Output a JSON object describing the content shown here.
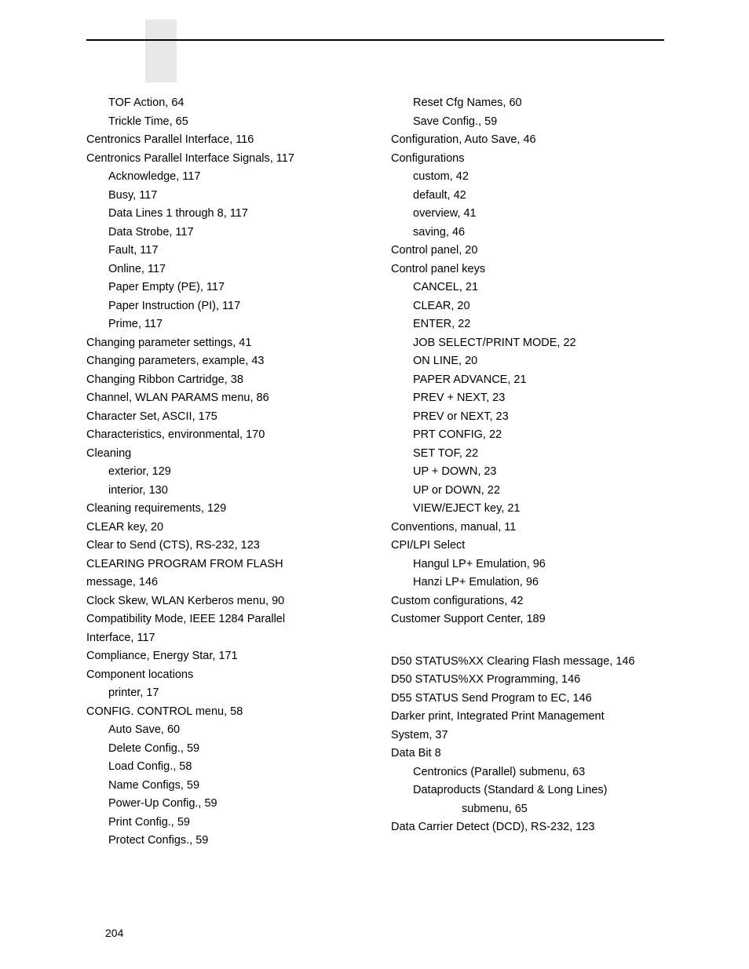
{
  "pageNumber": "204",
  "left": [
    {
      "t": "TOF Action, 64",
      "lvl": 1
    },
    {
      "t": "Trickle Time, 65",
      "lvl": 1
    },
    {
      "t": "Centronics Parallel Interface, 116",
      "lvl": 0
    },
    {
      "t": "Centronics Parallel Interface Signals, 117",
      "lvl": 0
    },
    {
      "t": "Acknowledge, 117",
      "lvl": 1
    },
    {
      "t": "Busy, 117",
      "lvl": 1
    },
    {
      "t": "Data Lines 1 through 8, 117",
      "lvl": 1
    },
    {
      "t": "Data Strobe, 117",
      "lvl": 1
    },
    {
      "t": "Fault, 117",
      "lvl": 1
    },
    {
      "t": "Online, 117",
      "lvl": 1
    },
    {
      "t": "Paper Empty (PE), 117",
      "lvl": 1
    },
    {
      "t": "Paper Instruction (PI), 117",
      "lvl": 1
    },
    {
      "t": "Prime, 117",
      "lvl": 1
    },
    {
      "t": "Changing parameter settings, 41",
      "lvl": 0
    },
    {
      "t": "Changing parameters, example, 43",
      "lvl": 0
    },
    {
      "t": "Changing Ribbon Cartridge, 38",
      "lvl": 0
    },
    {
      "t": "Channel, WLAN PARAMS menu, 86",
      "lvl": 0
    },
    {
      "t": "Character Set, ASCII, 175",
      "lvl": 0
    },
    {
      "t": "Characteristics, environmental, 170",
      "lvl": 0
    },
    {
      "t": "Cleaning",
      "lvl": 0
    },
    {
      "t": "exterior, 129",
      "lvl": 1
    },
    {
      "t": "interior, 130",
      "lvl": 1
    },
    {
      "t": "Cleaning requirements, 129",
      "lvl": 0
    },
    {
      "t": "CLEAR key, 20",
      "lvl": 0
    },
    {
      "t": "Clear to Send (CTS), RS-232, 123",
      "lvl": 0
    },
    {
      "t": "CLEARING PROGRAM FROM FLASH",
      "lvl": 0
    },
    {
      "t": "message, 146",
      "lvl": 0
    },
    {
      "t": "Clock Skew, WLAN Kerberos menu, 90",
      "lvl": 0
    },
    {
      "t": "Compatibility Mode, IEEE 1284 Parallel",
      "lvl": 0
    },
    {
      "t": "Interface, 117",
      "lvl": 0
    },
    {
      "t": "Compliance, Energy Star, 171",
      "lvl": 0
    },
    {
      "t": "Component locations",
      "lvl": 0
    },
    {
      "t": "printer, 17",
      "lvl": 1
    },
    {
      "t": "CONFIG. CONTROL menu, 58",
      "lvl": 0
    },
    {
      "t": "Auto Save, 60",
      "lvl": 1
    },
    {
      "t": "Delete Config., 59",
      "lvl": 1
    },
    {
      "t": "Load Config., 58",
      "lvl": 1
    },
    {
      "t": "Name Configs, 59",
      "lvl": 1
    },
    {
      "t": "Power-Up Config., 59",
      "lvl": 1
    },
    {
      "t": "Print Config., 59",
      "lvl": 1
    },
    {
      "t": "Protect Configs., 59",
      "lvl": 1
    }
  ],
  "right": [
    {
      "t": "Reset Cfg Names, 60",
      "lvl": 1
    },
    {
      "t": "Save Config., 59",
      "lvl": 1
    },
    {
      "t": "Configuration, Auto Save, 46",
      "lvl": 0
    },
    {
      "t": "Configurations",
      "lvl": 0
    },
    {
      "t": "custom, 42",
      "lvl": 1
    },
    {
      "t": "default, 42",
      "lvl": 1
    },
    {
      "t": "overview, 41",
      "lvl": 1
    },
    {
      "t": "saving, 46",
      "lvl": 1
    },
    {
      "t": "Control panel, 20",
      "lvl": 0
    },
    {
      "t": "Control panel keys",
      "lvl": 0
    },
    {
      "t": "CANCEL, 21",
      "lvl": 1
    },
    {
      "t": "CLEAR, 20",
      "lvl": 1
    },
    {
      "t": "ENTER, 22",
      "lvl": 1
    },
    {
      "t": "JOB SELECT/PRINT MODE, 22",
      "lvl": 1
    },
    {
      "t": "ON LINE, 20",
      "lvl": 1
    },
    {
      "t": "PAPER ADVANCE, 21",
      "lvl": 1
    },
    {
      "t": "PREV + NEXT, 23",
      "lvl": 1
    },
    {
      "t": "PREV or NEXT, 23",
      "lvl": 1
    },
    {
      "t": "PRT CONFIG, 22",
      "lvl": 1
    },
    {
      "t": "SET TOF, 22",
      "lvl": 1
    },
    {
      "t": "UP + DOWN, 23",
      "lvl": 1
    },
    {
      "t": "UP or DOWN, 22",
      "lvl": 1
    },
    {
      "t": "VIEW/EJECT key, 21",
      "lvl": 1
    },
    {
      "t": "Conventions, manual, 11",
      "lvl": 0
    },
    {
      "t": "CPI/LPI Select",
      "lvl": 0
    },
    {
      "t": "Hangul LP+ Emulation, 96",
      "lvl": 1
    },
    {
      "t": "Hanzi LP+ Emulation, 96",
      "lvl": 1
    },
    {
      "t": "Custom configurations, 42",
      "lvl": 0
    },
    {
      "t": "Customer Support Center, 189",
      "lvl": 0
    },
    {
      "gap": true
    },
    {
      "t": "D50 STATUS%XX Clearing Flash message, 146",
      "lvl": 0
    },
    {
      "t": "D50 STATUS%XX Programming, 146",
      "lvl": 0
    },
    {
      "t": "D55 STATUS Send Program to EC, 146",
      "lvl": 0
    },
    {
      "t": "Darker print, Integrated Print Management",
      "lvl": 0
    },
    {
      "t": "System, 37",
      "lvl": 0
    },
    {
      "t": "Data Bit 8",
      "lvl": 0
    },
    {
      "t": "Centronics (Parallel) submenu, 63",
      "lvl": 1
    },
    {
      "t": "Dataproducts (Standard & Long Lines)",
      "lvl": 1
    },
    {
      "t": "submenu, 65",
      "lvl": 2
    },
    {
      "t": "Data Carrier Detect (DCD), RS-232, 123",
      "lvl": 0
    }
  ]
}
